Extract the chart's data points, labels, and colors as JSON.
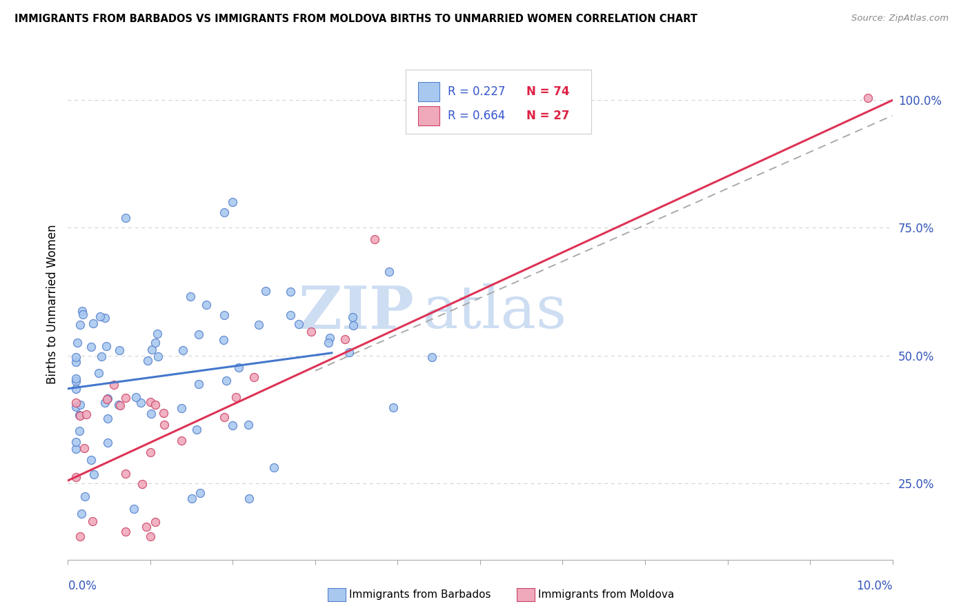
{
  "title": "IMMIGRANTS FROM BARBADOS VS IMMIGRANTS FROM MOLDOVA BIRTHS TO UNMARRIED WOMEN CORRELATION CHART",
  "source": "Source: ZipAtlas.com",
  "ylabel": "Births to Unmarried Women",
  "color_barbados_fill": "#a8c8f0",
  "color_barbados_edge": "#5580cc",
  "color_moldova_fill": "#f0a8bb",
  "color_moldova_edge": "#cc4466",
  "color_barbados_line": "#4477cc",
  "color_moldova_line": "#dd3355",
  "color_legend_r": "#3355cc",
  "color_legend_n": "#dd2244",
  "color_axis_text": "#3355bb",
  "watermark_zip": "ZIP",
  "watermark_atlas": "atlas",
  "watermark_color": "#c5d8f0",
  "xmin": 0.0,
  "xmax": 0.1,
  "ymin": 0.1,
  "ymax": 1.1,
  "yticks": [
    0.25,
    0.5,
    0.75,
    1.0
  ],
  "ytick_labels": [
    "25.0%",
    "50.0%",
    "75.0%",
    "100.0%"
  ],
  "barb_trend_x": [
    0.0,
    0.032
  ],
  "barb_trend_y": [
    0.435,
    0.505
  ],
  "mold_trend_x": [
    0.0,
    0.1
  ],
  "mold_trend_y": [
    0.255,
    1.0
  ],
  "dash_trend_x": [
    0.03,
    0.1
  ],
  "dash_trend_y": [
    0.47,
    0.97
  ]
}
